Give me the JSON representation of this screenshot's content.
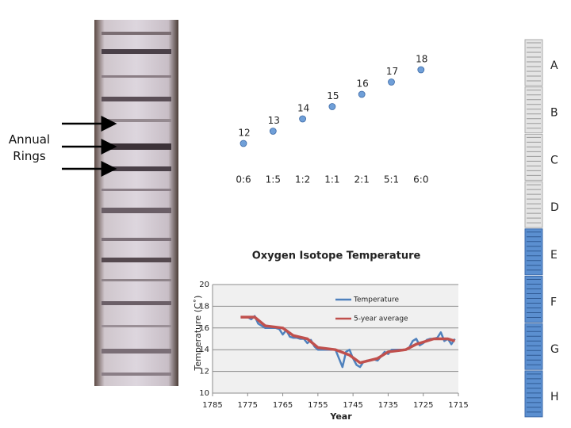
{
  "annotation": "Annual Rings",
  "side_labels": [
    "A",
    "B",
    "C",
    "D",
    "E",
    "F",
    "G",
    "H"
  ],
  "chart_data": [
    {
      "type": "scatter",
      "categories": [
        "0:6",
        "1:5",
        "1:2",
        "1:1",
        "2:1",
        "5:1",
        "6:0"
      ],
      "values": [
        12,
        13,
        14,
        15,
        16,
        17,
        18
      ],
      "color": "#6f9fd8"
    },
    {
      "type": "line",
      "title": "Oxygen Isotope Temperature",
      "x_label": "Year",
      "y_label": "Temperature (C˚)",
      "xlim": [
        1785,
        1715
      ],
      "xticks": [
        1785,
        1775,
        1765,
        1755,
        1745,
        1735,
        1725,
        1715
      ],
      "ylim": [
        10,
        20
      ],
      "yticks": [
        10,
        12,
        14,
        16,
        18,
        20
      ],
      "grid": true,
      "legend": "upper-right",
      "series": [
        {
          "name": "Temperature",
          "color": "#4f81bd",
          "x": [
            1777,
            1776,
            1775,
            1774,
            1773,
            1772,
            1771,
            1770,
            1769,
            1768,
            1767,
            1766,
            1765,
            1764,
            1763,
            1762,
            1761,
            1760,
            1759,
            1758,
            1757,
            1756,
            1755,
            1754,
            1753,
            1752,
            1751,
            1750,
            1749,
            1748,
            1747,
            1746,
            1745,
            1744,
            1743,
            1742,
            1741,
            1740,
            1739,
            1738,
            1737,
            1736,
            1735,
            1734,
            1733,
            1732,
            1731,
            1730,
            1729,
            1728,
            1727,
            1726,
            1725,
            1724,
            1723,
            1722,
            1721,
            1720,
            1719,
            1718,
            1717,
            1716
          ],
          "values": [
            17,
            17,
            17,
            16.8,
            17.1,
            16.4,
            16.2,
            16,
            16,
            16,
            16,
            15.9,
            15.4,
            15.8,
            15.2,
            15.1,
            15.1,
            15,
            15,
            14.6,
            14.9,
            14.3,
            14,
            14,
            14,
            14,
            14,
            14,
            13.2,
            12.4,
            13.8,
            14,
            13.2,
            12.6,
            12.4,
            12.9,
            13,
            13,
            13.1,
            13,
            13.4,
            13.8,
            13.6,
            14,
            14,
            14,
            14,
            14,
            14.2,
            14.8,
            15,
            14.4,
            14.6,
            14.9,
            15,
            15,
            15.1,
            15.6,
            14.8,
            15,
            14.5,
            15
          ]
        },
        {
          "name": "5-year average",
          "color": "#c0504d",
          "x": [
            1777,
            1773,
            1770,
            1765,
            1762,
            1758,
            1755,
            1750,
            1746,
            1743,
            1738,
            1735,
            1730,
            1727,
            1722,
            1718,
            1716
          ],
          "values": [
            17,
            17,
            16.2,
            16,
            15.3,
            15,
            14.2,
            14,
            13.5,
            12.8,
            13.2,
            13.8,
            14,
            14.5,
            15,
            15,
            14.8
          ]
        }
      ]
    }
  ]
}
